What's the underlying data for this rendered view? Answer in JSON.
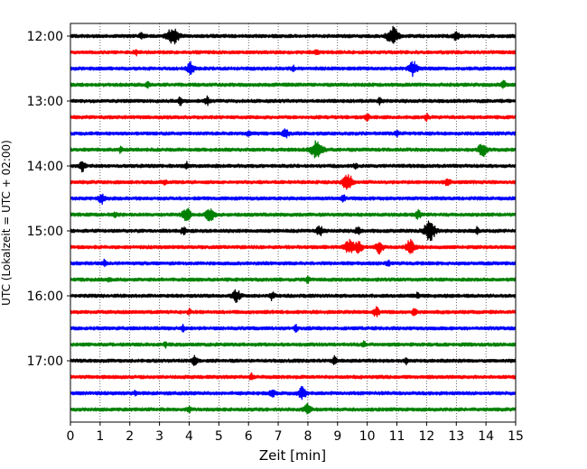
{
  "chart_data": {
    "type": "line",
    "title": "",
    "xlabel": "Zeit  [min]",
    "ylabel": "UTC (Lokalzeit = UTC + 02:00)",
    "xlim": [
      0,
      15
    ],
    "x_ticks": [
      "0",
      "1",
      "2",
      "3",
      "4",
      "5",
      "6",
      "7",
      "8",
      "9",
      "10",
      "11",
      "12",
      "13",
      "14",
      "15"
    ],
    "y_tick_labels": [
      "12:00",
      "13:00",
      "14:00",
      "15:00",
      "16:00",
      "17:00"
    ],
    "grid": "vertical-dotted",
    "trace_colors": [
      "#000000",
      "#ff0000",
      "#0000ff",
      "#008000"
    ],
    "traces": [
      {
        "start": "12:00",
        "events": [
          [
            3.45,
            9,
            1.0
          ],
          [
            10.85,
            9,
            1.0
          ],
          [
            2.4,
            3,
            0.4
          ],
          [
            13.0,
            4,
            0.5
          ]
        ]
      },
      {
        "start": "12:15",
        "events": [
          [
            2.2,
            3,
            0.3
          ],
          [
            8.3,
            3,
            0.3
          ]
        ]
      },
      {
        "start": "12:30",
        "events": [
          [
            4.05,
            6,
            0.6
          ],
          [
            11.55,
            7,
            0.8
          ],
          [
            7.5,
            3,
            0.3
          ]
        ]
      },
      {
        "start": "12:45",
        "events": [
          [
            14.6,
            4,
            0.4
          ],
          [
            2.6,
            3,
            0.3
          ]
        ]
      },
      {
        "start": "13:00",
        "events": [
          [
            4.6,
            4,
            0.4
          ],
          [
            3.7,
            4,
            0.3
          ],
          [
            10.4,
            3,
            0.3
          ]
        ]
      },
      {
        "start": "13:15",
        "events": [
          [
            10.0,
            3,
            0.4
          ],
          [
            12.0,
            3,
            0.3
          ]
        ]
      },
      {
        "start": "13:30",
        "events": [
          [
            7.25,
            5,
            0.5
          ],
          [
            6.0,
            3,
            0.3
          ],
          [
            11.0,
            3,
            0.3
          ]
        ]
      },
      {
        "start": "13:45",
        "events": [
          [
            8.3,
            10,
            1.0
          ],
          [
            13.9,
            7,
            0.8
          ],
          [
            1.7,
            3,
            0.3
          ]
        ]
      },
      {
        "start": "14:00",
        "events": [
          [
            0.4,
            5,
            0.5
          ],
          [
            3.9,
            4,
            0.3
          ],
          [
            9.6,
            3,
            0.3
          ]
        ]
      },
      {
        "start": "14:15",
        "events": [
          [
            9.35,
            8,
            0.9
          ],
          [
            12.7,
            4,
            0.5
          ],
          [
            3.2,
            3,
            0.3
          ]
        ]
      },
      {
        "start": "14:30",
        "events": [
          [
            1.05,
            5,
            0.5
          ],
          [
            9.2,
            3,
            0.3
          ]
        ]
      },
      {
        "start": "14:45",
        "events": [
          [
            4.7,
            6,
            0.8
          ],
          [
            3.9,
            7,
            0.7
          ],
          [
            11.7,
            4,
            0.5
          ],
          [
            1.5,
            3,
            0.3
          ]
        ]
      },
      {
        "start": "15:00",
        "events": [
          [
            12.1,
            10,
            1.0
          ],
          [
            8.4,
            5,
            0.6
          ],
          [
            9.7,
            4,
            0.5
          ],
          [
            3.8,
            4,
            0.4
          ],
          [
            13.7,
            3,
            0.3
          ]
        ]
      },
      {
        "start": "15:15",
        "events": [
          [
            9.4,
            7,
            0.8
          ],
          [
            9.7,
            6,
            0.7
          ],
          [
            10.4,
            6,
            0.7
          ],
          [
            11.45,
            7,
            0.8
          ]
        ]
      },
      {
        "start": "15:30",
        "events": [
          [
            1.15,
            3,
            0.3
          ],
          [
            10.7,
            3,
            0.3
          ]
        ]
      },
      {
        "start": "15:45",
        "events": [
          [
            1.3,
            3,
            0.3
          ],
          [
            8.0,
            3,
            0.3
          ]
        ]
      },
      {
        "start": "16:00",
        "events": [
          [
            5.6,
            6,
            0.7
          ],
          [
            6.8,
            4,
            0.4
          ],
          [
            11.7,
            3,
            0.3
          ]
        ]
      },
      {
        "start": "16:15",
        "events": [
          [
            10.3,
            5,
            0.5
          ],
          [
            11.6,
            4,
            0.4
          ],
          [
            4.0,
            3,
            0.3
          ]
        ]
      },
      {
        "start": "16:30",
        "events": [
          [
            3.8,
            3,
            0.3
          ],
          [
            7.6,
            3,
            0.3
          ]
        ]
      },
      {
        "start": "16:45",
        "events": [
          [
            3.2,
            3,
            0.3
          ],
          [
            9.9,
            3,
            0.3
          ]
        ]
      },
      {
        "start": "17:00",
        "events": [
          [
            4.2,
            5,
            0.5
          ],
          [
            8.9,
            4,
            0.4
          ],
          [
            11.3,
            3,
            0.3
          ]
        ]
      },
      {
        "start": "17:15",
        "events": [
          [
            6.1,
            3,
            0.3
          ]
        ]
      },
      {
        "start": "17:30",
        "events": [
          [
            6.8,
            4,
            0.5
          ],
          [
            7.8,
            6,
            0.7
          ],
          [
            2.2,
            3,
            0.3
          ]
        ]
      },
      {
        "start": "17:45",
        "events": [
          [
            8.0,
            5,
            0.6
          ],
          [
            4.0,
            3,
            0.3
          ]
        ]
      }
    ]
  }
}
